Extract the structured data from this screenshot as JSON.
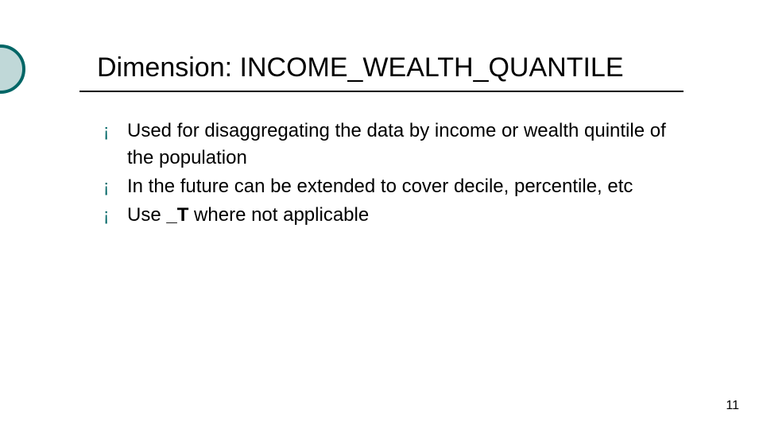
{
  "slide": {
    "title": "Dimension: INCOME_WEALTH_QUANTILE",
    "bullets": [
      "Used for disaggregating the data by income or wealth quintile of the population",
      "In the future can be extended to cover decile, percentile, etc",
      "Use _T where not applicable"
    ],
    "bold_segment": "_T",
    "page_number": "11"
  },
  "style": {
    "title_color": "#000000",
    "title_fontsize": 34,
    "bullet_fontsize": 24,
    "bullet_color": "#006666",
    "text_color": "#000000",
    "circle_border_color": "#006666",
    "circle_fill_color": "#c0d8d8",
    "background_color": "#ffffff",
    "underline_color": "#000000"
  }
}
